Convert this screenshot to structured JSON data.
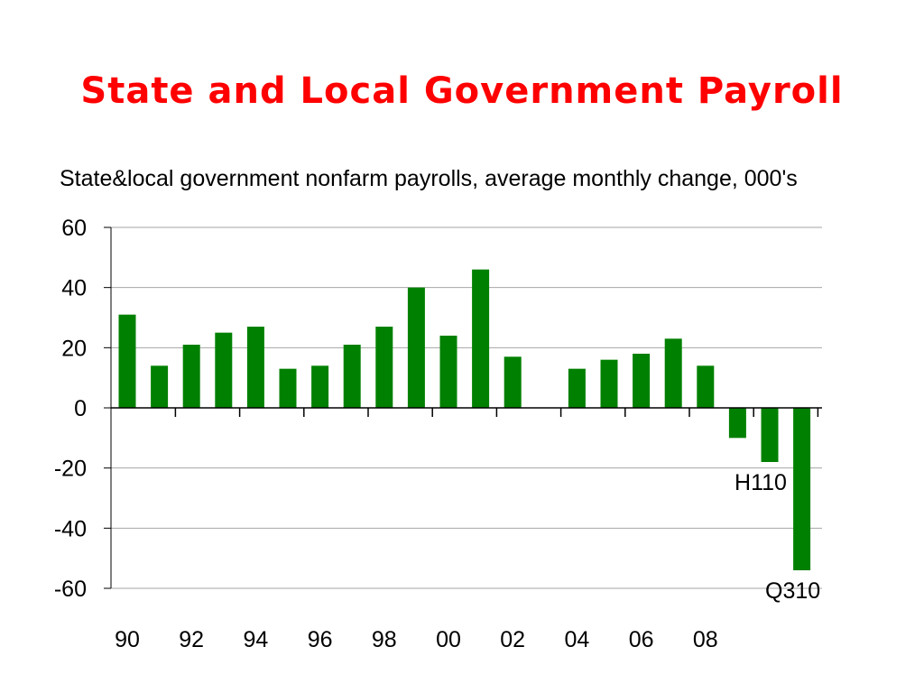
{
  "slide": {
    "title": "State and Local Government Payroll"
  },
  "chart_data": {
    "type": "bar",
    "title": "State&local government nonfarm payrolls, average monthly change, 000's",
    "xlabel": "",
    "ylabel": "",
    "ylim": [
      -60,
      60
    ],
    "yticks": [
      "60",
      "40",
      "20",
      "0",
      "-20",
      "-40",
      "-60"
    ],
    "xtick_labels": [
      "90",
      "92",
      "94",
      "96",
      "98",
      "00",
      "02",
      "04",
      "06",
      "08"
    ],
    "categories": [
      "90",
      "91",
      "92",
      "93",
      "94",
      "95",
      "96",
      "97",
      "98",
      "99",
      "00",
      "01",
      "02",
      "03",
      "04",
      "05",
      "06",
      "07",
      "08",
      "09",
      "H110",
      "Q310"
    ],
    "values": [
      31,
      14,
      21,
      25,
      27,
      13,
      14,
      21,
      27,
      40,
      24,
      46,
      17,
      0,
      13,
      16,
      18,
      23,
      14,
      -10,
      -18,
      -54
    ],
    "annotations": [
      {
        "category": "H110",
        "text": "H110"
      },
      {
        "category": "Q310",
        "text": "Q310"
      }
    ],
    "bar_color": "#008000",
    "grid": true
  }
}
